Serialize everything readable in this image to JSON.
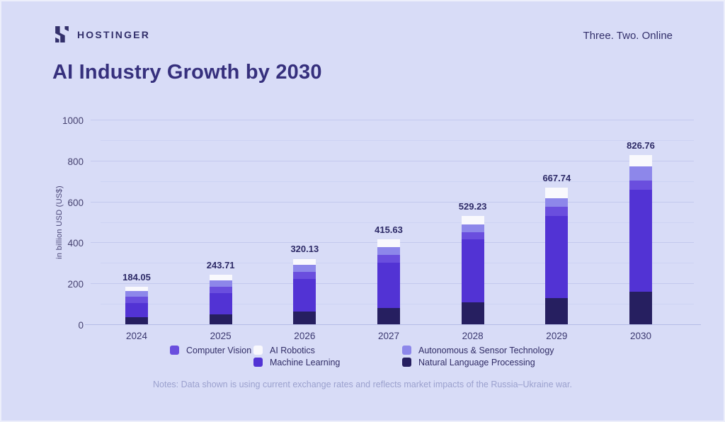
{
  "header": {
    "brand": "HOSTINGER",
    "tagline": "Three. Two. Online",
    "logo_icon": "hostinger-h-logo",
    "brand_color": "#33306b"
  },
  "title": "AI Industry Growth by 2030",
  "notes": "Notes: Data shown is using current exchange rates and reflects market impacts of the Russia–Ukraine war.",
  "colors": {
    "background": "#d8dcf7",
    "title_text": "#36307d",
    "axis_text": "#45416f",
    "gridline_major": "#c3c9ee",
    "gridline_minor": "#cdd3f3",
    "notes_text": "#9ba1ce"
  },
  "chart_data": {
    "type": "bar",
    "stacked": true,
    "title": "AI Industry Growth by 2030",
    "xlabel": "",
    "ylabel": "in billion USD (US$)",
    "ylim": [
      0,
      1000
    ],
    "yticks": [
      0,
      200,
      400,
      600,
      800,
      1000
    ],
    "minor_step": 100,
    "major_step": 200,
    "grid": true,
    "legend_position": "bottom",
    "categories": [
      "2024",
      "2025",
      "2026",
      "2027",
      "2028",
      "2029",
      "2030"
    ],
    "totals": [
      184.05,
      243.71,
      320.13,
      415.63,
      529.23,
      667.74,
      826.76
    ],
    "total_labels": [
      "184.05",
      "243.71",
      "320.13",
      "415.63",
      "529.23",
      "667.74",
      "826.76"
    ],
    "series": [
      {
        "name": "Natural Language Processing",
        "color": "#261f60",
        "values": [
          34,
          49,
          62,
          78,
          106,
          128,
          158
        ]
      },
      {
        "name": "Machine Learning",
        "color": "#5233d4",
        "values": [
          71,
          103,
          161,
          224,
          309,
          402,
          500
        ]
      },
      {
        "name": "Computer Vision",
        "color": "#6a4ede",
        "values": [
          29,
          33,
          33,
          36,
          36,
          44,
          46
        ]
      },
      {
        "name": "Autonomous & Sensor Technology",
        "color": "#8d87ea",
        "values": [
          30,
          31,
          35,
          41,
          38,
          42,
          67
        ]
      },
      {
        "name": "AI Robotics",
        "color": "#f9f9fd",
        "values": [
          20.05,
          27.71,
          29.13,
          36.63,
          40.23,
          51.74,
          55.76
        ]
      }
    ],
    "series_note": "segment values estimated from bar proportions; stack order bottom-to-top as listed"
  },
  "legend": {
    "columns": [
      [
        {
          "label": "Computer Vision",
          "color": "#6a4ede"
        }
      ],
      [
        {
          "label": "AI Robotics",
          "color": "#f9f9fd"
        },
        {
          "label": "Machine Learning",
          "color": "#5233d4"
        }
      ],
      [
        {
          "label": "Autonomous & Sensor Technology",
          "color": "#8d87ea"
        },
        {
          "label": "Natural Language Processing",
          "color": "#261f60"
        }
      ]
    ]
  }
}
